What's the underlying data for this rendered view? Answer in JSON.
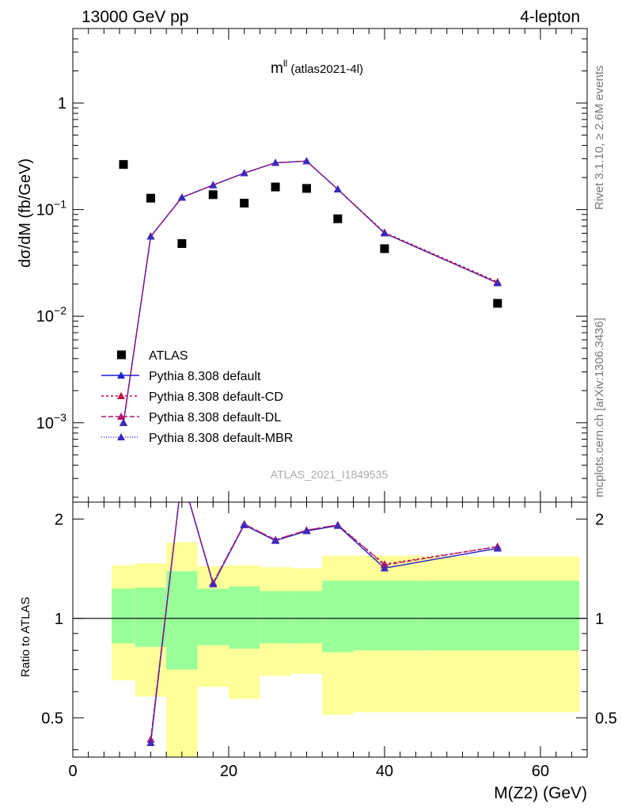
{
  "header": {
    "left": "13000 GeV pp",
    "right": "4-lepton"
  },
  "side": {
    "rivet": "Rivet 3.1.10, ≥ 2.6M events",
    "mcplots": "mcplots.cern.ch [arXiv:1306.3436]"
  },
  "chart_data": [
    {
      "type": "scatter",
      "title_main": "m",
      "title_sup": "ll",
      "title_sub": " (atlas2021-4l)",
      "watermark": "ATLAS_2021_I1849535",
      "ylabel": "dσ/dM (fb/GeV)",
      "yscale": "log",
      "ylim": [
        0.00018,
        5.0
      ],
      "xlim": [
        0,
        66
      ],
      "yticks": [
        {
          "v": 0.001,
          "base": "10",
          "exp": "−3"
        },
        {
          "v": 0.01,
          "base": "10",
          "exp": "−2"
        },
        {
          "v": 0.1,
          "base": "10",
          "exp": "−1"
        },
        {
          "v": 1,
          "base": "1",
          "exp": ""
        }
      ],
      "series": [
        {
          "name": "ATLAS",
          "kind": "data",
          "color": "#000000",
          "x": [
            6.5,
            10,
            14,
            18,
            22,
            26,
            30,
            34,
            40,
            54.5
          ],
          "y": [
            0.265,
            0.128,
            0.048,
            0.138,
            0.115,
            0.163,
            0.158,
            0.082,
            0.043,
            0.0132
          ]
        },
        {
          "name": "Pythia 8.308 default",
          "kind": "mc",
          "color": "#1f1fd0",
          "dash": "",
          "x": [
            6.5,
            10,
            14,
            18,
            22,
            26,
            30,
            34,
            40,
            54.5
          ],
          "y": [
            0.001,
            0.056,
            0.13,
            0.17,
            0.22,
            0.275,
            0.285,
            0.155,
            0.06,
            0.0205
          ]
        },
        {
          "name": "Pythia 8.308 default-CD",
          "kind": "mc",
          "color": "#c0143c",
          "dash": "3,3",
          "x": [
            6.5,
            10,
            14,
            18,
            22,
            26,
            30,
            34,
            40,
            54.5
          ],
          "y": [
            0.001,
            0.056,
            0.13,
            0.17,
            0.22,
            0.275,
            0.285,
            0.155,
            0.061,
            0.021
          ]
        },
        {
          "name": "Pythia 8.308 default-DL",
          "kind": "mc",
          "color": "#b0186e",
          "dash": "6,3",
          "x": [
            6.5,
            10,
            14,
            18,
            22,
            26,
            30,
            34,
            40,
            54.5
          ],
          "y": [
            0.001,
            0.056,
            0.13,
            0.17,
            0.22,
            0.275,
            0.285,
            0.155,
            0.06,
            0.0205
          ]
        },
        {
          "name": "Pythia 8.308 default-MBR",
          "kind": "mc",
          "color": "#3a2bbf",
          "dash": "1,2",
          "x": [
            6.5,
            10,
            14,
            18,
            22,
            26,
            30,
            34,
            40,
            54.5
          ],
          "y": [
            0.001,
            0.056,
            0.13,
            0.17,
            0.22,
            0.275,
            0.285,
            0.155,
            0.06,
            0.0205
          ]
        }
      ]
    },
    {
      "type": "line",
      "ylabel": "Ratio to ATLAS",
      "xlabel": "M(Z2) (GeV)",
      "ylim": [
        0.38,
        2.25
      ],
      "xlim": [
        0,
        66
      ],
      "xticks": [
        "0",
        "20",
        "40",
        "60"
      ],
      "xtick_values": [
        0,
        20,
        40,
        60
      ],
      "yticks": [
        "0.5",
        "1",
        "2"
      ],
      "ytick_values": [
        0.5,
        1,
        2
      ],
      "bands": [
        {
          "x0": 5,
          "x1": 8,
          "yellow": [
            0.65,
            1.45
          ],
          "green": [
            0.84,
            1.23
          ]
        },
        {
          "x0": 8,
          "x1": 12,
          "yellow": [
            0.58,
            1.47
          ],
          "green": [
            0.82,
            1.24
          ]
        },
        {
          "x0": 12,
          "x1": 16,
          "yellow": [
            0.3,
            1.7
          ],
          "green": [
            0.7,
            1.39
          ]
        },
        {
          "x0": 16,
          "x1": 20,
          "yellow": [
            0.62,
            1.44
          ],
          "green": [
            0.83,
            1.23
          ]
        },
        {
          "x0": 20,
          "x1": 24,
          "yellow": [
            0.57,
            1.45
          ],
          "green": [
            0.81,
            1.25
          ]
        },
        {
          "x0": 24,
          "x1": 28,
          "yellow": [
            0.67,
            1.43
          ],
          "green": [
            0.84,
            1.21
          ]
        },
        {
          "x0": 28,
          "x1": 32,
          "yellow": [
            0.68,
            1.42
          ],
          "green": [
            0.84,
            1.21
          ]
        },
        {
          "x0": 32,
          "x1": 36,
          "yellow": [
            0.51,
            1.55
          ],
          "green": [
            0.79,
            1.3
          ]
        },
        {
          "x0": 36,
          "x1": 45,
          "yellow": [
            0.52,
            1.55
          ],
          "green": [
            0.8,
            1.3
          ]
        },
        {
          "x0": 45,
          "x1": 65,
          "yellow": [
            0.52,
            1.54
          ],
          "green": [
            0.8,
            1.3
          ]
        }
      ],
      "series": [
        {
          "name": "Pythia 8.308 default",
          "color": "#1f1fd0",
          "dash": "",
          "x": [
            10,
            14,
            18,
            22,
            26,
            30,
            34,
            40,
            54.5
          ],
          "y": [
            0.42,
            2.7,
            1.27,
            1.92,
            1.72,
            1.84,
            1.91,
            1.42,
            1.63
          ]
        },
        {
          "name": "Pythia 8.308 default-CD",
          "color": "#c0143c",
          "dash": "3,3",
          "x": [
            10,
            14,
            18,
            22,
            26,
            30,
            34,
            40,
            54.5
          ],
          "y": [
            0.43,
            2.7,
            1.28,
            1.93,
            1.73,
            1.85,
            1.92,
            1.46,
            1.65
          ]
        },
        {
          "name": "Pythia 8.308 default-DL",
          "color": "#b0186e",
          "dash": "6,3",
          "x": [
            10,
            14,
            18,
            22,
            26,
            30,
            34,
            40,
            54.5
          ],
          "y": [
            0.43,
            2.7,
            1.28,
            1.93,
            1.73,
            1.85,
            1.92,
            1.45,
            1.65
          ]
        },
        {
          "name": "Pythia 8.308 default-MBR",
          "color": "#3a2bbf",
          "dash": "1,2",
          "x": [
            10,
            14,
            18,
            22,
            26,
            30,
            34,
            40,
            54.5
          ],
          "y": [
            0.42,
            2.7,
            1.27,
            1.92,
            1.72,
            1.84,
            1.91,
            1.42,
            1.63
          ]
        }
      ]
    }
  ]
}
